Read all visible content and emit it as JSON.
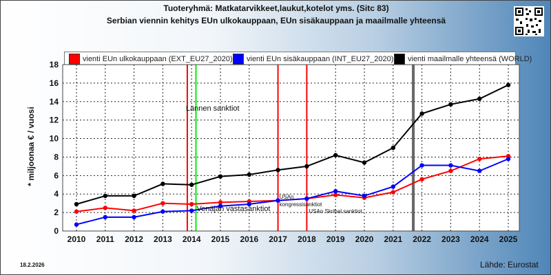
{
  "title": "Tuoteryhmä: Matkatarvikkeet,laukut,kotelot yms. (Sitc 83)",
  "subtitle": "Serbian viennin kehitys EUn ulkokauppaan, EUn sisäkauppaan ja maailmalle yhteensä",
  "footer": {
    "date": "18.2.2026",
    "source": "Lähde: Eurostat"
  },
  "chart_data": {
    "type": "line",
    "ylabel": "* miljoonaa € / vuosi",
    "xlabel": "",
    "ylim": [
      0,
      18
    ],
    "yticks": [
      0,
      2,
      4,
      6,
      8,
      10,
      12,
      14,
      16,
      18
    ],
    "grid": true,
    "legend_position": "top",
    "x": [
      "2010",
      "2011",
      "2012",
      "2013",
      "2014",
      "2015",
      "2016",
      "2017",
      "2018",
      "2019",
      "2020",
      "2021",
      "2022",
      "2023",
      "2024",
      "2025"
    ],
    "series": [
      {
        "name": "vienti EUn ulkokauppaan (EXT_EU27_2020)",
        "color": "#ff0000",
        "values": [
          2.1,
          2.5,
          2.2,
          3.0,
          2.9,
          3.1,
          3.2,
          3.3,
          3.5,
          3.9,
          3.6,
          4.2,
          5.6,
          6.5,
          7.8,
          8.1
        ]
      },
      {
        "name": "vienti EUn sisäkauppaan (INT_EU27_2020)",
        "color": "#0000ff",
        "values": [
          0.7,
          1.5,
          1.5,
          2.1,
          2.2,
          2.7,
          2.9,
          3.3,
          3.5,
          4.3,
          3.8,
          4.8,
          7.1,
          7.1,
          6.5,
          7.8
        ]
      },
      {
        "name": "vienti maailmalle yhteensä (WORLD)",
        "color": "#000000",
        "values": [
          2.9,
          3.8,
          3.8,
          5.1,
          5.0,
          5.9,
          6.1,
          6.6,
          7.0,
          8.2,
          7.4,
          9.0,
          12.7,
          13.7,
          14.3,
          15.8
        ]
      }
    ],
    "annotations": [
      {
        "x": 2013.85,
        "color": "#ff0000",
        "text": "Lännen sanktiot"
      },
      {
        "x": 2014.15,
        "color": "#00ee00",
        "text": "Venäjän vastasanktiot"
      },
      {
        "x": 2017.0,
        "color": "#ff0000",
        "text": "USAn kongressisanktiot"
      },
      {
        "x": 2018.0,
        "color": "#ff0000",
        "text": "USAn Skribal sanktiot"
      },
      {
        "x": 2021.7,
        "color": "#666666",
        "text": ""
      }
    ]
  }
}
